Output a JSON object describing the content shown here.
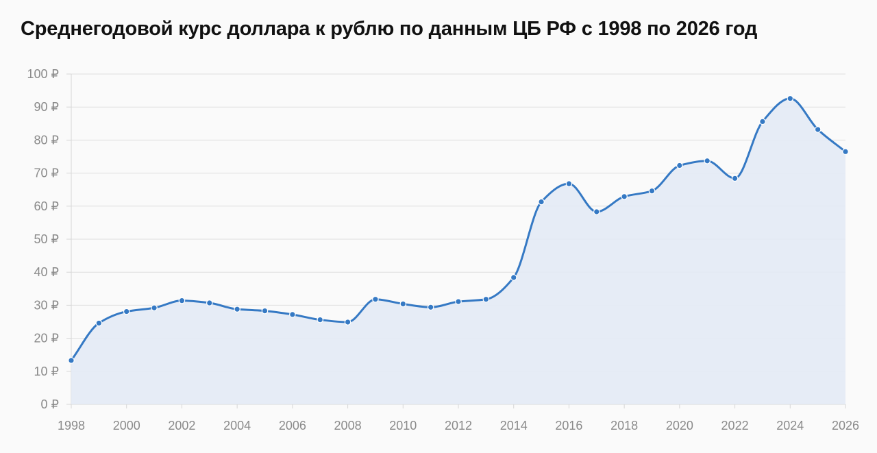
{
  "chart_data": {
    "type": "area",
    "title": "Среднегодовой курс доллара к рублю по данным ЦБ РФ с 1998 по 2026 год",
    "xlabel": "",
    "ylabel": "",
    "x": [
      1998,
      1999,
      2000,
      2001,
      2002,
      2003,
      2004,
      2005,
      2006,
      2007,
      2008,
      2009,
      2010,
      2011,
      2012,
      2013,
      2014,
      2015,
      2016,
      2017,
      2018,
      2019,
      2020,
      2021,
      2022,
      2023,
      2024,
      2025,
      2026
    ],
    "values": [
      13.3,
      24.6,
      28.1,
      29.2,
      31.4,
      30.7,
      28.8,
      28.3,
      27.2,
      25.6,
      24.9,
      31.8,
      30.4,
      29.4,
      31.1,
      31.8,
      38.4,
      61.3,
      66.8,
      58.3,
      62.9,
      64.6,
      72.3,
      73.7,
      68.4,
      85.6,
      92.6,
      83.2,
      76.5
    ],
    "xlim": [
      1998,
      2026
    ],
    "ylim": [
      0,
      100
    ],
    "x_ticks": [
      "1998",
      "2000",
      "2002",
      "2004",
      "2006",
      "2008",
      "2010",
      "2012",
      "2014",
      "2016",
      "2018",
      "2020",
      "2022",
      "2024",
      "2026"
    ],
    "y_ticks": [
      "0 ₽",
      "10 ₽",
      "20 ₽",
      "30 ₽",
      "40 ₽",
      "50 ₽",
      "60 ₽",
      "70 ₽",
      "80 ₽",
      "90 ₽",
      "100 ₽"
    ],
    "grid": true,
    "legend": "none",
    "colors": {
      "line": "#3579c4",
      "fill": "#e3eaf5",
      "grid": "#dedede",
      "axis": "#d6d6d6",
      "tick_text": "#8a8a8a",
      "title_text": "#111111",
      "background": "#fafafa"
    }
  }
}
